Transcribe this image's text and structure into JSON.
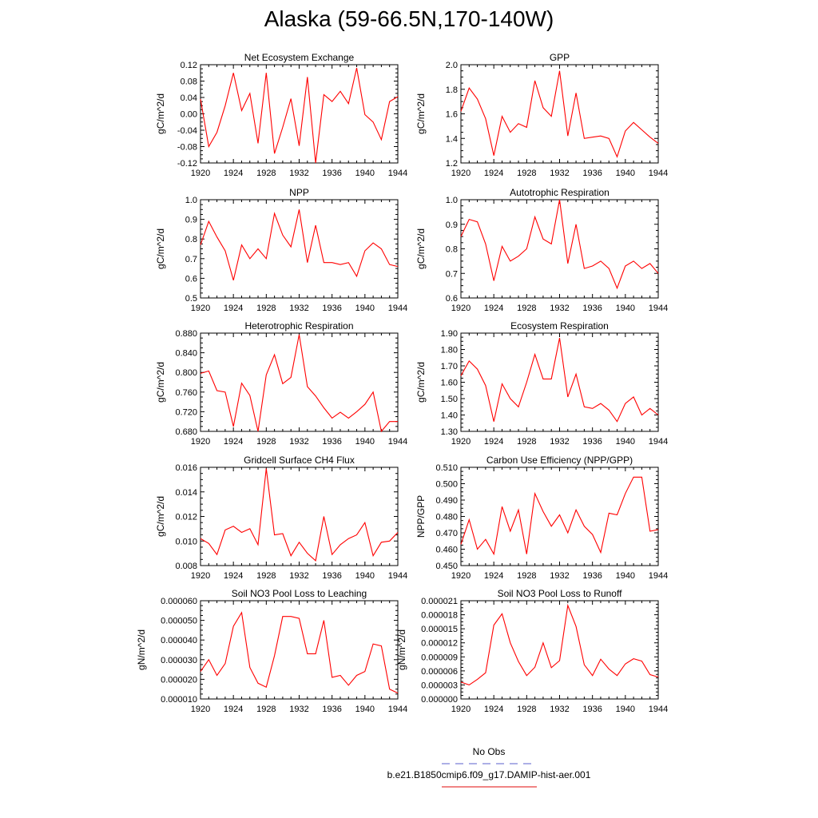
{
  "figure": {
    "title": "Alaska (59-66.5N,170-140W)"
  },
  "legend": {
    "items": [
      {
        "label": "No Obs",
        "color": "#7b7fd6",
        "style": "dashed"
      },
      {
        "label": "b.e21.B1850cmip6.f09_g17.DAMIP-hist-aer.001",
        "color": "#e83a3a",
        "style": "solid"
      }
    ]
  },
  "chart_data": [
    {
      "type": "line",
      "title": "Net Ecosystem Exchange",
      "ylabel": "gC/m^2/d",
      "xlim": [
        1920,
        1944
      ],
      "ylim": [
        -0.12,
        0.12
      ],
      "xticks": [
        "1920",
        "1924",
        "1928",
        "1932",
        "1936",
        "1940",
        "1944"
      ],
      "yticks": [
        "-0.12",
        "-0.08",
        "-0.04",
        "0.00",
        "0.04",
        "0.08",
        "0.12"
      ],
      "x": [
        1920,
        1921,
        1922,
        1923,
        1924,
        1925,
        1926,
        1927,
        1928,
        1929,
        1930,
        1931,
        1932,
        1933,
        1934,
        1935,
        1936,
        1937,
        1938,
        1939,
        1940,
        1941,
        1942,
        1943,
        1944
      ],
      "series": [
        {
          "color": "#ff0000",
          "values": [
            0.036,
            -0.08,
            -0.045,
            0.02,
            0.1,
            0.008,
            0.05,
            -0.072,
            0.1,
            -0.097,
            -0.033,
            0.037,
            -0.078,
            0.09,
            -0.12,
            0.047,
            0.03,
            0.055,
            0.025,
            0.112,
            -0.002,
            -0.02,
            -0.063,
            0.03,
            0.042
          ]
        }
      ]
    },
    {
      "type": "line",
      "title": "GPP",
      "ylabel": "gC/m^2/d",
      "xlim": [
        1920,
        1944
      ],
      "ylim": [
        1.2,
        2.0
      ],
      "xticks": [
        "1920",
        "1924",
        "1928",
        "1932",
        "1936",
        "1940",
        "1944"
      ],
      "yticks": [
        "1.2",
        "1.4",
        "1.6",
        "1.8",
        "2.0"
      ],
      "x": [
        1920,
        1921,
        1922,
        1923,
        1924,
        1925,
        1926,
        1927,
        1928,
        1929,
        1930,
        1931,
        1932,
        1933,
        1934,
        1935,
        1936,
        1937,
        1938,
        1939,
        1940,
        1941,
        1942,
        1943,
        1944
      ],
      "series": [
        {
          "color": "#ff0000",
          "values": [
            1.62,
            1.81,
            1.72,
            1.56,
            1.26,
            1.58,
            1.45,
            1.52,
            1.49,
            1.87,
            1.65,
            1.58,
            1.95,
            1.42,
            1.77,
            1.4,
            1.41,
            1.42,
            1.4,
            1.25,
            1.46,
            1.53,
            1.47,
            1.41,
            1.36
          ]
        }
      ]
    },
    {
      "type": "line",
      "title": "NPP",
      "ylabel": "gC/m^2/d",
      "xlim": [
        1920,
        1944
      ],
      "ylim": [
        0.5,
        1.0
      ],
      "xticks": [
        "1920",
        "1924",
        "1928",
        "1932",
        "1936",
        "1940",
        "1944"
      ],
      "yticks": [
        "0.5",
        "0.6",
        "0.7",
        "0.8",
        "0.9",
        "1.0"
      ],
      "x": [
        1920,
        1921,
        1922,
        1923,
        1924,
        1925,
        1926,
        1927,
        1928,
        1929,
        1930,
        1931,
        1932,
        1933,
        1934,
        1935,
        1936,
        1937,
        1938,
        1939,
        1940,
        1941,
        1942,
        1943,
        1944
      ],
      "series": [
        {
          "color": "#ff0000",
          "values": [
            0.77,
            0.89,
            0.81,
            0.74,
            0.59,
            0.77,
            0.7,
            0.75,
            0.7,
            0.93,
            0.82,
            0.76,
            0.95,
            0.68,
            0.87,
            0.68,
            0.68,
            0.67,
            0.68,
            0.61,
            0.74,
            0.78,
            0.75,
            0.67,
            0.66
          ]
        }
      ]
    },
    {
      "type": "line",
      "title": "Autotrophic Respiration",
      "ylabel": "gC/m^2/d",
      "xlim": [
        1920,
        1944
      ],
      "ylim": [
        0.6,
        1.0
      ],
      "xticks": [
        "1920",
        "1924",
        "1928",
        "1932",
        "1936",
        "1940",
        "1944"
      ],
      "yticks": [
        "0.6",
        "0.7",
        "0.8",
        "0.9",
        "1.0"
      ],
      "x": [
        1920,
        1921,
        1922,
        1923,
        1924,
        1925,
        1926,
        1927,
        1928,
        1929,
        1930,
        1931,
        1932,
        1933,
        1934,
        1935,
        1936,
        1937,
        1938,
        1939,
        1940,
        1941,
        1942,
        1943,
        1944
      ],
      "series": [
        {
          "color": "#ff0000",
          "values": [
            0.85,
            0.92,
            0.91,
            0.82,
            0.67,
            0.81,
            0.75,
            0.77,
            0.8,
            0.93,
            0.84,
            0.82,
            1.0,
            0.74,
            0.9,
            0.72,
            0.73,
            0.75,
            0.72,
            0.64,
            0.73,
            0.75,
            0.72,
            0.74,
            0.7
          ]
        }
      ]
    },
    {
      "type": "line",
      "title": "Heterotrophic Respiration",
      "ylabel": "gC/m^2/d",
      "xlim": [
        1920,
        1944
      ],
      "ylim": [
        0.68,
        0.88
      ],
      "xticks": [
        "1920",
        "1924",
        "1928",
        "1932",
        "1936",
        "1940",
        "1944"
      ],
      "yticks": [
        "0.680",
        "0.720",
        "0.760",
        "0.800",
        "0.840",
        "0.880"
      ],
      "x": [
        1920,
        1921,
        1922,
        1923,
        1924,
        1925,
        1926,
        1927,
        1928,
        1929,
        1930,
        1931,
        1932,
        1933,
        1934,
        1935,
        1936,
        1937,
        1938,
        1939,
        1940,
        1941,
        1942,
        1943,
        1944
      ],
      "series": [
        {
          "color": "#ff0000",
          "values": [
            0.798,
            0.803,
            0.763,
            0.76,
            0.69,
            0.778,
            0.753,
            0.68,
            0.795,
            0.836,
            0.777,
            0.79,
            0.877,
            0.771,
            0.752,
            0.728,
            0.707,
            0.719,
            0.707,
            0.72,
            0.735,
            0.76,
            0.68,
            0.7,
            0.7
          ]
        }
      ]
    },
    {
      "type": "line",
      "title": "Ecosystem Respiration",
      "ylabel": "gC/m^2/d",
      "xlim": [
        1920,
        1944
      ],
      "ylim": [
        1.3,
        1.9
      ],
      "xticks": [
        "1920",
        "1924",
        "1928",
        "1932",
        "1936",
        "1940",
        "1944"
      ],
      "yticks": [
        "1.30",
        "1.40",
        "1.50",
        "1.60",
        "1.70",
        "1.80",
        "1.90"
      ],
      "x": [
        1920,
        1921,
        1922,
        1923,
        1924,
        1925,
        1926,
        1927,
        1928,
        1929,
        1930,
        1931,
        1932,
        1933,
        1934,
        1935,
        1936,
        1937,
        1938,
        1939,
        1940,
        1941,
        1942,
        1943,
        1944
      ],
      "series": [
        {
          "color": "#ff0000",
          "values": [
            1.64,
            1.73,
            1.68,
            1.58,
            1.36,
            1.59,
            1.5,
            1.45,
            1.6,
            1.77,
            1.62,
            1.62,
            1.87,
            1.51,
            1.65,
            1.45,
            1.44,
            1.47,
            1.43,
            1.36,
            1.47,
            1.51,
            1.4,
            1.44,
            1.4
          ]
        }
      ]
    },
    {
      "type": "line",
      "title": "Gridcell Surface CH4 Flux",
      "ylabel": "gC/m^2/d",
      "xlim": [
        1920,
        1944
      ],
      "ylim": [
        0.008,
        0.016
      ],
      "xticks": [
        "1920",
        "1924",
        "1928",
        "1932",
        "1936",
        "1940",
        "1944"
      ],
      "yticks": [
        "0.008",
        "0.010",
        "0.012",
        "0.014",
        "0.016"
      ],
      "x": [
        1920,
        1921,
        1922,
        1923,
        1924,
        1925,
        1926,
        1927,
        1928,
        1929,
        1930,
        1931,
        1932,
        1933,
        1934,
        1935,
        1936,
        1937,
        1938,
        1939,
        1940,
        1941,
        1942,
        1943,
        1944
      ],
      "series": [
        {
          "color": "#ff0000",
          "values": [
            0.0102,
            0.0098,
            0.0089,
            0.0109,
            0.0112,
            0.0107,
            0.011,
            0.0097,
            0.0159,
            0.0105,
            0.0106,
            0.0088,
            0.0099,
            0.009,
            0.0084,
            0.012,
            0.0089,
            0.0097,
            0.0102,
            0.0105,
            0.0115,
            0.0088,
            0.0099,
            0.01,
            0.0107
          ]
        }
      ]
    },
    {
      "type": "line",
      "title": "Carbon Use Efficiency (NPP/GPP)",
      "ylabel": "NPP/GPP",
      "xlim": [
        1920,
        1944
      ],
      "ylim": [
        0.45,
        0.51
      ],
      "xticks": [
        "1920",
        "1924",
        "1928",
        "1932",
        "1936",
        "1940",
        "1944"
      ],
      "yticks": [
        "0.450",
        "0.460",
        "0.470",
        "0.480",
        "0.490",
        "0.500",
        "0.510"
      ],
      "x": [
        1920,
        1921,
        1922,
        1923,
        1924,
        1925,
        1926,
        1927,
        1928,
        1929,
        1930,
        1931,
        1932,
        1933,
        1934,
        1935,
        1936,
        1937,
        1938,
        1939,
        1940,
        1941,
        1942,
        1943,
        1944
      ],
      "series": [
        {
          "color": "#ff0000",
          "values": [
            0.463,
            0.478,
            0.46,
            0.466,
            0.457,
            0.486,
            0.471,
            0.484,
            0.457,
            0.494,
            0.483,
            0.474,
            0.481,
            0.47,
            0.484,
            0.474,
            0.469,
            0.458,
            0.482,
            0.481,
            0.494,
            0.504,
            0.504,
            0.471,
            0.472
          ]
        }
      ]
    },
    {
      "type": "line",
      "title": "Soil NO3 Pool Loss to Leaching",
      "ylabel": "gN/m^2/d",
      "xlim": [
        1920,
        1944
      ],
      "ylim": [
        1e-05,
        6e-05
      ],
      "xticks": [
        "1920",
        "1924",
        "1928",
        "1932",
        "1936",
        "1940",
        "1944"
      ],
      "yticks": [
        "0.000010",
        "0.000020",
        "0.000030",
        "0.000040",
        "0.000050",
        "0.000060"
      ],
      "x": [
        1920,
        1921,
        1922,
        1923,
        1924,
        1925,
        1926,
        1927,
        1928,
        1929,
        1930,
        1931,
        1932,
        1933,
        1934,
        1935,
        1936,
        1937,
        1938,
        1939,
        1940,
        1941,
        1942,
        1943,
        1944
      ],
      "series": [
        {
          "color": "#ff0000",
          "values": [
            2.4e-05,
            3e-05,
            2.2e-05,
            2.8e-05,
            4.7e-05,
            5.4e-05,
            2.6e-05,
            1.8e-05,
            1.6e-05,
            3.2e-05,
            5.2e-05,
            5.2e-05,
            5.1e-05,
            3.3e-05,
            3.3e-05,
            5e-05,
            2.1e-05,
            2.2e-05,
            1.7e-05,
            2.2e-05,
            2.4e-05,
            3.8e-05,
            3.7e-05,
            1.5e-05,
            1.3e-05
          ]
        }
      ]
    },
    {
      "type": "line",
      "title": "Soil NO3 Pool Loss to Runoff",
      "ylabel": "gN/m^2/d",
      "xlim": [
        1920,
        1944
      ],
      "ylim": [
        0.0,
        2.1e-05
      ],
      "xticks": [
        "1920",
        "1924",
        "1928",
        "1932",
        "1936",
        "1940",
        "1944"
      ],
      "yticks": [
        "0.000000",
        "0.000003",
        "0.000006",
        "0.000009",
        "0.000012",
        "0.000015",
        "0.000018",
        "0.000021"
      ],
      "x": [
        1920,
        1921,
        1922,
        1923,
        1924,
        1925,
        1926,
        1927,
        1928,
        1929,
        1930,
        1931,
        1932,
        1933,
        1934,
        1935,
        1936,
        1937,
        1938,
        1939,
        1940,
        1941,
        1942,
        1943,
        1944
      ],
      "series": [
        {
          "color": "#ff0000",
          "values": [
            3.6e-06,
            3e-06,
            4.2e-06,
            5.6e-06,
            1.58e-05,
            1.82e-05,
            1.2e-05,
            8e-06,
            5e-06,
            6.8e-06,
            1.2e-05,
            6.7e-06,
            8.2e-06,
            2e-05,
            1.55e-05,
            7.3e-06,
            5e-06,
            8.5e-06,
            6.4e-06,
            5e-06,
            7.5e-06,
            8.6e-06,
            8.1e-06,
            5.2e-06,
            4.7e-06
          ]
        }
      ]
    }
  ]
}
